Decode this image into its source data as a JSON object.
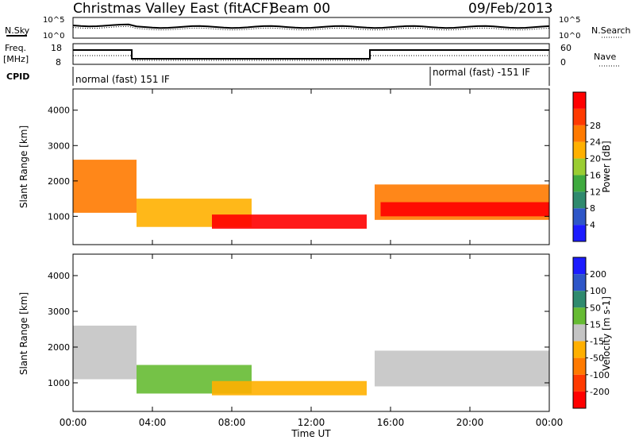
{
  "header": {
    "title": "Christmas Valley East (fitACF)",
    "beam": "Beam 00",
    "date": "09/Feb/2013"
  },
  "meta_panels": {
    "nsky_label": "N.Sky",
    "nsearch_label": "N.Search",
    "noise_ticks": [
      "10^5",
      "10^0"
    ],
    "freq_label_top": "Freq.",
    "freq_label_unit": "[MHz]",
    "freq_ticks": [
      "18",
      "8"
    ],
    "nave_label": "Nave",
    "nave_ticks": [
      "60",
      "0"
    ],
    "cpid_label": "CPID",
    "cpid_segments": [
      {
        "label": "normal (fast) 151 IF",
        "start_hour": 0,
        "end_hour": 18
      },
      {
        "label": "normal (fast) -151 IF",
        "start_hour": 18,
        "end_hour": 24
      }
    ]
  },
  "chart_data": [
    {
      "type": "heatmap",
      "name": "power",
      "ylabel": "Slant Range [km]",
      "xlabel": "Time UT",
      "xlim": [
        0,
        24
      ],
      "ylim": [
        200,
        4600
      ],
      "yticks": [
        1000,
        2000,
        3000,
        4000
      ],
      "xticks": [
        "00:00",
        "04:00",
        "08:00",
        "12:00",
        "16:00",
        "20:00",
        "00:00"
      ],
      "colorbar": {
        "label": "Power [dB]",
        "ticks": [
          "4",
          "8",
          "12",
          "16",
          "20",
          "24",
          "28"
        ],
        "colors": [
          "#1c1cff",
          "#2e56c8",
          "#2f8a6e",
          "#3faa3f",
          "#9acd32",
          "#ffb000",
          "#ff7a00",
          "#ff3a00",
          "#ff0000"
        ]
      },
      "regions": [
        {
          "t0": 0,
          "t1": 3.2,
          "r0": 1100,
          "r1": 2600,
          "level": 6
        },
        {
          "t0": 3.2,
          "t1": 9.0,
          "r0": 700,
          "r1": 1500,
          "level": 5
        },
        {
          "t0": 7.0,
          "t1": 14.8,
          "r0": 650,
          "r1": 1050,
          "level": 8
        },
        {
          "t0": 15.2,
          "t1": 24,
          "r0": 900,
          "r1": 1900,
          "level": 6
        },
        {
          "t0": 15.5,
          "t1": 24,
          "r0": 1000,
          "r1": 1400,
          "level": 8
        }
      ]
    },
    {
      "type": "heatmap",
      "name": "velocity",
      "ylabel": "Slant Range [km]",
      "xlabel": "Time UT",
      "xlim": [
        0,
        24
      ],
      "ylim": [
        200,
        4600
      ],
      "yticks": [
        1000,
        2000,
        3000,
        4000
      ],
      "xticks": [
        "00:00",
        "04:00",
        "08:00",
        "12:00",
        "16:00",
        "20:00",
        "00:00"
      ],
      "colorbar": {
        "label": "Velocity [m s-1]",
        "ticks": [
          "200",
          "100",
          "50",
          "15",
          "-15",
          "-50",
          "-100",
          "-200"
        ],
        "colors": [
          "#1c1cff",
          "#2e56c8",
          "#2f8a6e",
          "#66bb33",
          "#c4c4c4",
          "#ffb000",
          "#ff7a00",
          "#ff3a00",
          "#ff0000"
        ]
      },
      "regions": [
        {
          "t0": 0,
          "t1": 3.2,
          "r0": 1100,
          "r1": 2600,
          "level": 4
        },
        {
          "t0": 3.2,
          "t1": 9.0,
          "r0": 700,
          "r1": 1500,
          "level": 3
        },
        {
          "t0": 7.0,
          "t1": 14.8,
          "r0": 650,
          "r1": 1050,
          "level": 5
        },
        {
          "t0": 15.2,
          "t1": 24,
          "r0": 900,
          "r1": 1900,
          "level": 4
        }
      ]
    }
  ],
  "colors": {
    "frame": "#000000",
    "background": "#ffffff"
  }
}
